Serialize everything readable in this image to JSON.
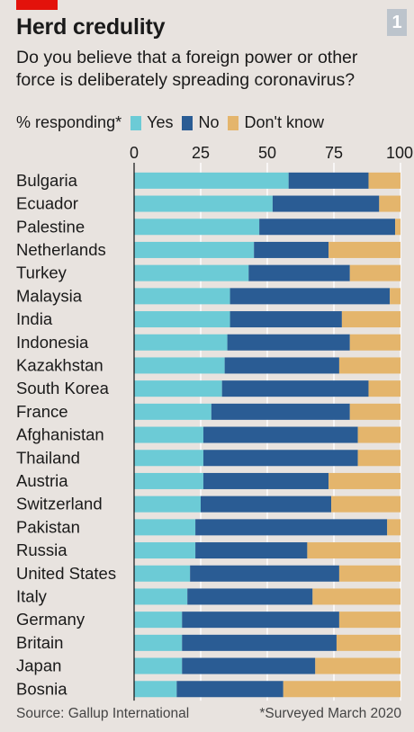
{
  "header": {
    "title": "Herd credulity",
    "subtitle": "Do you believe that a foreign power or other force is deliberately spreading coronavirus?",
    "figure_number": "1"
  },
  "legend": {
    "label": "% responding*",
    "items": [
      {
        "name": "Yes",
        "color": "#6ccbd6"
      },
      {
        "name": "No",
        "color": "#2a5c94"
      },
      {
        "name": "Don't know",
        "color": "#e4b56c"
      }
    ]
  },
  "footer": {
    "source": "Source: Gallup International",
    "note": "*Surveyed March 2020"
  },
  "chart_data": {
    "type": "bar",
    "orientation": "horizontal",
    "stacked": true,
    "xlim": [
      0,
      100
    ],
    "x_ticks": [
      "0",
      "25",
      "50",
      "75",
      "100"
    ],
    "grid": true,
    "categories": [
      "Bulgaria",
      "Ecuador",
      "Palestine",
      "Netherlands",
      "Turkey",
      "Malaysia",
      "India",
      "Indonesia",
      "Kazakhstan",
      "South Korea",
      "France",
      "Afghanistan",
      "Thailand",
      "Austria",
      "Switzerland",
      "Pakistan",
      "Russia",
      "United States",
      "Italy",
      "Germany",
      "Britain",
      "Japan",
      "Bosnia"
    ],
    "series": [
      {
        "name": "Yes",
        "color": "#6ccbd6",
        "values": [
          58,
          52,
          47,
          45,
          43,
          36,
          36,
          35,
          34,
          33,
          29,
          26,
          26,
          26,
          25,
          23,
          23,
          21,
          20,
          18,
          18,
          18,
          16
        ]
      },
      {
        "name": "No",
        "color": "#2a5c94",
        "values": [
          30,
          40,
          51,
          28,
          38,
          60,
          42,
          46,
          43,
          55,
          52,
          58,
          58,
          47,
          49,
          72,
          42,
          56,
          47,
          59,
          58,
          50,
          40
        ]
      },
      {
        "name": "Don't know",
        "color": "#e4b56c",
        "values": [
          12,
          8,
          2,
          27,
          19,
          4,
          22,
          19,
          23,
          12,
          19,
          16,
          16,
          27,
          26,
          5,
          35,
          23,
          33,
          23,
          24,
          32,
          44
        ]
      }
    ]
  }
}
